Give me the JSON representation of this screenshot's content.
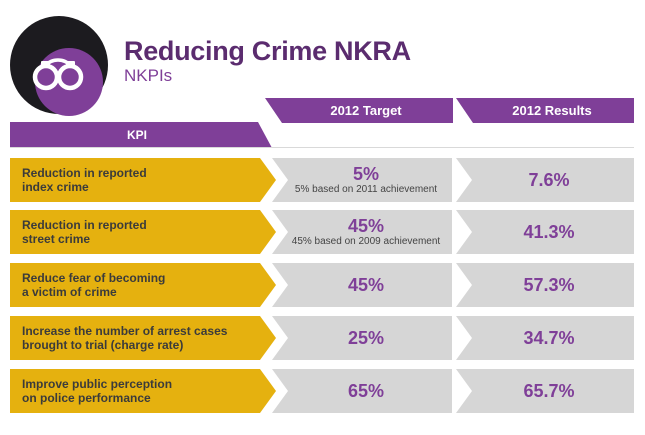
{
  "header": {
    "title": "Reducing Crime NKRA",
    "subtitle": "NKPIs",
    "badge_icon": "handcuffs-icon"
  },
  "table": {
    "columns": {
      "kpi": "KPI",
      "target": "2012 Target",
      "results": "2012 Results"
    },
    "rows": [
      {
        "kpi": "Reduction in reported\nindex crime",
        "target": "5%",
        "target_note": "5% based on 2011 achievement",
        "result": "7.6%"
      },
      {
        "kpi": "Reduction in reported\nstreet crime",
        "target": "45%",
        "target_note": "45% based on 2009 achievement",
        "result": "41.3%"
      },
      {
        "kpi": "Reduce fear of becoming\na victim of crime",
        "target": "45%",
        "target_note": "",
        "result": "57.3%"
      },
      {
        "kpi": "Increase the number of arrest cases\nbrought to trial (charge rate)",
        "target": "25%",
        "target_note": "",
        "result": "34.7%"
      },
      {
        "kpi": "Improve public perception\non police performance",
        "target": "65%",
        "target_note": "",
        "result": "65.7%"
      }
    ]
  },
  "colors": {
    "purple": "#7f3f98",
    "dark_purple": "#5b2c6f",
    "gold": "#e5b10f",
    "gray": "#d6d6d6",
    "badge_dark": "#1c1b1f"
  }
}
